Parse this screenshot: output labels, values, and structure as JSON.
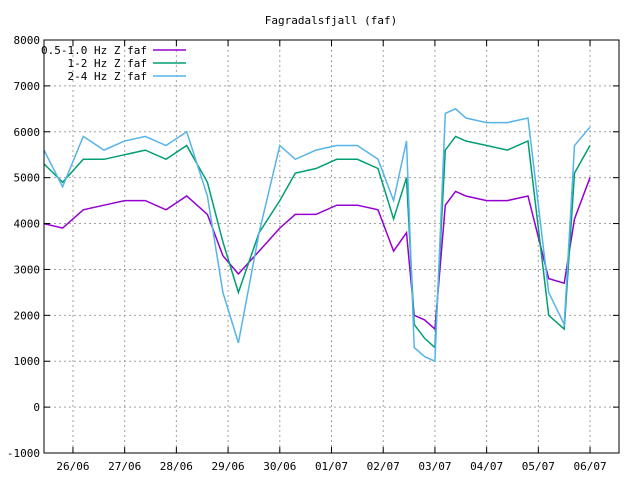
{
  "chart_data": {
    "type": "line",
    "title": "Fagradalsfjall (faf)",
    "xlabel": "",
    "ylabel": "",
    "ylim": [
      -1000,
      8000
    ],
    "yticks": [
      -1000,
      0,
      1000,
      2000,
      3000,
      4000,
      5000,
      6000,
      7000,
      8000
    ],
    "ytick_labels": [
      "-1000",
      "0",
      "1000",
      "2000",
      "3000",
      "4000",
      "5000",
      "6000",
      "7000",
      "8000"
    ],
    "xlim": [
      -0.56,
      10.56
    ],
    "x_categories": [
      "26/06",
      "27/06",
      "28/06",
      "29/06",
      "30/06",
      "01/07",
      "02/07",
      "03/07",
      "04/07",
      "05/07",
      "06/07"
    ],
    "grid": true,
    "legend_position": "top-left",
    "series": [
      {
        "name": "0.5-1.0 Hz Z faf",
        "color": "#9400d3",
        "x": [
          -0.56,
          -0.2,
          0.2,
          0.6,
          1.0,
          1.4,
          1.8,
          2.2,
          2.6,
          2.9,
          3.2,
          3.6,
          4.0,
          4.3,
          4.7,
          5.1,
          5.5,
          5.9,
          6.2,
          6.45,
          6.6,
          6.8,
          7.0,
          7.2,
          7.4,
          7.6,
          8.0,
          8.4,
          8.8,
          9.2,
          9.5,
          9.7,
          10.0
        ],
        "y": [
          4000,
          3900,
          4300,
          4400,
          4500,
          4500,
          4300,
          4600,
          4200,
          3300,
          2900,
          3400,
          3900,
          4200,
          4200,
          4400,
          4400,
          4300,
          3400,
          3800,
          2000,
          1900,
          1700,
          4400,
          4700,
          4600,
          4500,
          4500,
          4600,
          2800,
          2700,
          4100,
          5000
        ]
      },
      {
        "name": "1-2 Hz Z faf",
        "color": "#009e73",
        "x": [
          -0.56,
          -0.2,
          0.2,
          0.6,
          1.0,
          1.4,
          1.8,
          2.2,
          2.6,
          2.9,
          3.2,
          3.6,
          4.0,
          4.3,
          4.7,
          5.1,
          5.5,
          5.9,
          6.2,
          6.45,
          6.6,
          6.8,
          7.0,
          7.2,
          7.4,
          7.6,
          8.0,
          8.4,
          8.8,
          9.2,
          9.5,
          9.7,
          10.0
        ],
        "y": [
          5300,
          4900,
          5400,
          5400,
          5500,
          5600,
          5400,
          5700,
          4900,
          3600,
          2500,
          3800,
          4500,
          5100,
          5200,
          5400,
          5400,
          5200,
          4100,
          5000,
          1800,
          1500,
          1300,
          5600,
          5900,
          5800,
          5700,
          5600,
          5800,
          2000,
          1700,
          5100,
          5700
        ]
      },
      {
        "name": "2-4 Hz Z faf",
        "color": "#56b4e9",
        "x": [
          -0.56,
          -0.2,
          0.2,
          0.6,
          1.0,
          1.4,
          1.8,
          2.2,
          2.6,
          2.9,
          3.2,
          3.6,
          4.0,
          4.3,
          4.7,
          5.1,
          5.5,
          5.9,
          6.2,
          6.45,
          6.6,
          6.8,
          7.0,
          7.2,
          7.4,
          7.6,
          8.0,
          8.4,
          8.8,
          9.2,
          9.5,
          9.7,
          10.0
        ],
        "y": [
          5600,
          4800,
          5900,
          5600,
          5800,
          5900,
          5700,
          6000,
          4600,
          2500,
          1400,
          3800,
          5700,
          5400,
          5600,
          5700,
          5700,
          5400,
          4500,
          5800,
          1300,
          1100,
          1000,
          6400,
          6500,
          6300,
          6200,
          6200,
          6300,
          2500,
          1800,
          5700,
          6100
        ]
      }
    ]
  }
}
